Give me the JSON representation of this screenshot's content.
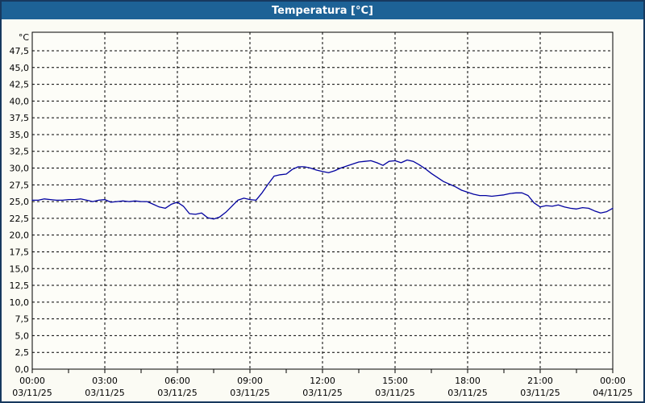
{
  "window": {
    "title": "Temperatura [°C]"
  },
  "colors": {
    "title_bar_bg": "#1D6296",
    "title_text": "#FFFFFF",
    "frame_border": "#17395F",
    "page_bg": "#FBFBF4",
    "plot_bg": "#FDFDF8",
    "plot_border": "#000000",
    "grid": "#000000",
    "series_line": "#0202A0",
    "label_text": "#000000"
  },
  "chart_data": {
    "type": "line",
    "title": "Temperatura [°C]",
    "grid": "dashed",
    "legend": "none",
    "y_axis": {
      "unit_label": "°C",
      "min": 0,
      "max": 47.5,
      "tick_step": 2.5,
      "tick_labels": [
        "0,0",
        "2,5",
        "5,0",
        "7,5",
        "10,0",
        "12,5",
        "15,0",
        "17,5",
        "20,0",
        "22,5",
        "25,0",
        "27,5",
        "30,0",
        "32,5",
        "35,0",
        "37,5",
        "40,0",
        "42,5",
        "45,0",
        "47,5"
      ]
    },
    "x_axis": {
      "start_minutes": 0,
      "end_minutes": 1440,
      "major_tick_minutes": 180,
      "minor_tick_minutes": 90,
      "tick_labels": [
        {
          "time": "00:00",
          "date": "03/11/25"
        },
        {
          "time": "03:00",
          "date": "03/11/25"
        },
        {
          "time": "06:00",
          "date": "03/11/25"
        },
        {
          "time": "09:00",
          "date": "03/11/25"
        },
        {
          "time": "12:00",
          "date": "03/11/25"
        },
        {
          "time": "15:00",
          "date": "03/11/25"
        },
        {
          "time": "18:00",
          "date": "03/11/25"
        },
        {
          "time": "21:00",
          "date": "03/11/25"
        },
        {
          "time": "00:00",
          "date": "04/11/25"
        }
      ]
    },
    "series": [
      {
        "name": "Temperatura",
        "color": "#0202A0",
        "points": [
          [
            0,
            25.2
          ],
          [
            15,
            25.2
          ],
          [
            30,
            25.4
          ],
          [
            45,
            25.3
          ],
          [
            60,
            25.2
          ],
          [
            75,
            25.2
          ],
          [
            90,
            25.3
          ],
          [
            105,
            25.3
          ],
          [
            120,
            25.4
          ],
          [
            135,
            25.2
          ],
          [
            150,
            25.0
          ],
          [
            165,
            25.2
          ],
          [
            180,
            25.3
          ],
          [
            195,
            24.9
          ],
          [
            210,
            25.0
          ],
          [
            225,
            25.1
          ],
          [
            240,
            25.0
          ],
          [
            255,
            25.1
          ],
          [
            270,
            25.0
          ],
          [
            285,
            25.0
          ],
          [
            300,
            24.6
          ],
          [
            315,
            24.2
          ],
          [
            330,
            24.0
          ],
          [
            345,
            24.6
          ],
          [
            360,
            24.9
          ],
          [
            375,
            24.3
          ],
          [
            390,
            23.2
          ],
          [
            405,
            23.1
          ],
          [
            420,
            23.3
          ],
          [
            435,
            22.6
          ],
          [
            450,
            22.4
          ],
          [
            465,
            22.7
          ],
          [
            480,
            23.4
          ],
          [
            495,
            24.3
          ],
          [
            510,
            25.2
          ],
          [
            525,
            25.5
          ],
          [
            540,
            25.3
          ],
          [
            555,
            25.2
          ],
          [
            570,
            26.3
          ],
          [
            585,
            27.6
          ],
          [
            600,
            28.8
          ],
          [
            615,
            29.0
          ],
          [
            630,
            29.1
          ],
          [
            645,
            29.8
          ],
          [
            660,
            30.2
          ],
          [
            675,
            30.2
          ],
          [
            690,
            30.0
          ],
          [
            705,
            29.7
          ],
          [
            720,
            29.5
          ],
          [
            735,
            29.3
          ],
          [
            750,
            29.6
          ],
          [
            765,
            30.0
          ],
          [
            780,
            30.3
          ],
          [
            795,
            30.6
          ],
          [
            810,
            30.9
          ],
          [
            825,
            31.0
          ],
          [
            840,
            31.1
          ],
          [
            855,
            30.8
          ],
          [
            870,
            30.4
          ],
          [
            885,
            31.0
          ],
          [
            900,
            31.1
          ],
          [
            915,
            30.8
          ],
          [
            930,
            31.2
          ],
          [
            945,
            31.0
          ],
          [
            960,
            30.5
          ],
          [
            975,
            29.9
          ],
          [
            990,
            29.2
          ],
          [
            1005,
            28.6
          ],
          [
            1020,
            28.0
          ],
          [
            1035,
            27.6
          ],
          [
            1050,
            27.2
          ],
          [
            1065,
            26.7
          ],
          [
            1080,
            26.4
          ],
          [
            1095,
            26.1
          ],
          [
            1110,
            25.9
          ],
          [
            1125,
            25.9
          ],
          [
            1140,
            25.8
          ],
          [
            1155,
            25.9
          ],
          [
            1170,
            26.0
          ],
          [
            1185,
            26.2
          ],
          [
            1200,
            26.3
          ],
          [
            1215,
            26.3
          ],
          [
            1230,
            25.9
          ],
          [
            1245,
            24.8
          ],
          [
            1260,
            24.2
          ],
          [
            1275,
            24.4
          ],
          [
            1290,
            24.3
          ],
          [
            1305,
            24.5
          ],
          [
            1320,
            24.2
          ],
          [
            1335,
            24.0
          ],
          [
            1350,
            23.9
          ],
          [
            1365,
            24.1
          ],
          [
            1380,
            24.0
          ],
          [
            1395,
            23.6
          ],
          [
            1410,
            23.3
          ],
          [
            1425,
            23.5
          ],
          [
            1440,
            24.0
          ]
        ]
      }
    ]
  }
}
